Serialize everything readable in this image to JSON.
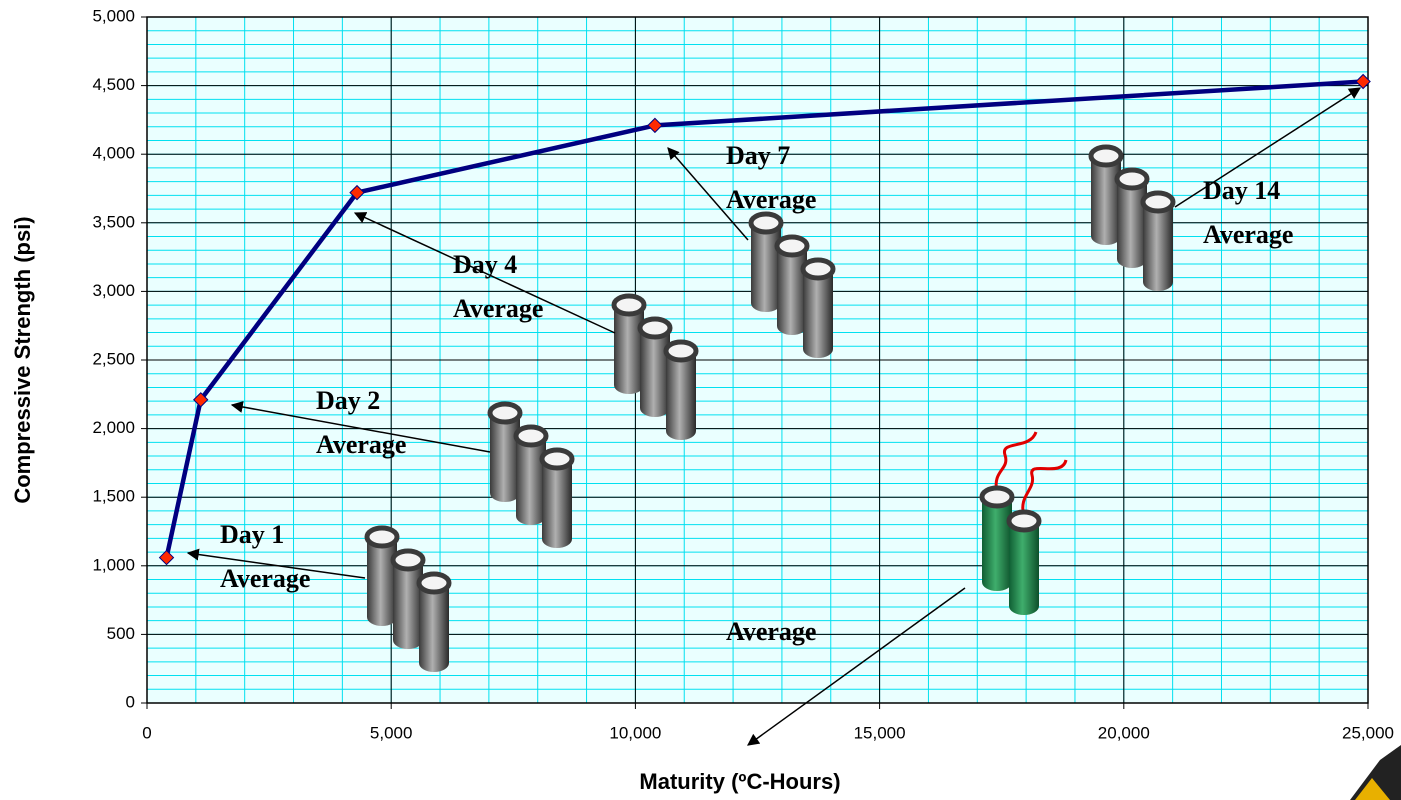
{
  "chart_data": {
    "type": "line",
    "x_label": "Maturity (ºC-Hours)",
    "y_label": "Compressive Strength (psi)",
    "series": [
      {
        "color": "#000080",
        "marker_color": "#ff2a00",
        "x": [
          400,
          1100,
          4300,
          10400,
          24900
        ],
        "values": [
          1060,
          2210,
          3720,
          4210,
          4530
        ]
      }
    ],
    "xlim": [
      0,
      25000
    ],
    "xticks": [
      0,
      {
        "value": 5000,
        "label": "5,000"
      },
      {
        "value": 10000,
        "label": "10,000"
      },
      {
        "value": 15000,
        "label": "15,000"
      },
      {
        "value": 20000,
        "label": "20,000"
      },
      {
        "value": 25000,
        "label": "25,000"
      }
    ],
    "ylim": [
      0,
      5000
    ],
    "yticks": [
      0,
      500,
      {
        "value": 1000,
        "label": "1,000"
      },
      {
        "value": 1500,
        "label": "1,500"
      },
      {
        "value": 2000,
        "label": "2,000"
      },
      {
        "value": 2500,
        "label": "2,500"
      },
      {
        "value": 3000,
        "label": "3,000"
      },
      {
        "value": 3500,
        "label": "3,500"
      },
      {
        "value": 4000,
        "label": "4,000"
      },
      {
        "value": 4500,
        "label": "4,500"
      },
      {
        "value": 5000,
        "label": "5,000"
      }
    ],
    "grid": true,
    "minor_grid": {
      "x": 1000,
      "y": 100
    },
    "annotations": [
      {
        "lines": [
          "Day 1",
          "Average"
        ]
      },
      {
        "lines": [
          "Day 2",
          "Average"
        ]
      },
      {
        "lines": [
          "Day 4",
          "Average"
        ]
      },
      {
        "lines": [
          "Day 7",
          "Average"
        ]
      },
      {
        "lines": [
          "Day 14",
          "Average"
        ]
      },
      {
        "lines": [
          "Average"
        ]
      }
    ]
  }
}
